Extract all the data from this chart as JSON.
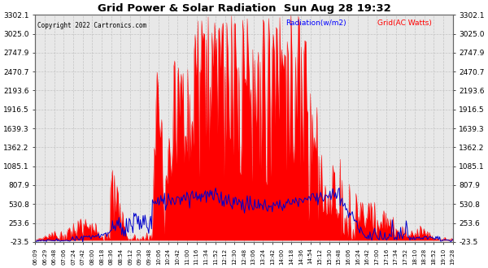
{
  "title": "Grid Power & Solar Radiation  Sun Aug 28 19:32",
  "copyright": "Copyright 2022 Cartronics.com",
  "legend_radiation": "Radiation(w/m2)",
  "legend_grid": "Grid(AC Watts)",
  "yticks": [
    -23.5,
    253.6,
    530.8,
    807.9,
    1085.1,
    1362.2,
    1639.3,
    1916.5,
    2193.6,
    2470.7,
    2747.9,
    3025.0,
    3302.1
  ],
  "ymin": -23.5,
  "ymax": 3302.1,
  "background_color": "#ffffff",
  "plot_bg_color": "#e8e8e8",
  "grid_color": "#bbbbbb",
  "radiation_color": "#ff0000",
  "grid_power_color": "#0000cc",
  "title_color": "#000000",
  "copyright_color": "#000000",
  "legend_radiation_color": "#0000ff",
  "legend_grid_color": "#ff0000",
  "xtick_labels": [
    "06:09",
    "06:29",
    "06:48",
    "07:06",
    "07:24",
    "07:42",
    "08:00",
    "08:18",
    "08:36",
    "08:54",
    "09:12",
    "09:30",
    "09:48",
    "10:06",
    "10:24",
    "10:42",
    "11:00",
    "11:16",
    "11:34",
    "11:52",
    "12:12",
    "12:30",
    "12:48",
    "13:06",
    "13:24",
    "13:42",
    "14:00",
    "14:18",
    "14:36",
    "14:54",
    "15:12",
    "15:30",
    "15:48",
    "16:06",
    "16:24",
    "16:42",
    "17:00",
    "17:16",
    "17:34",
    "17:52",
    "18:10",
    "18:28",
    "18:52",
    "19:10",
    "19:28"
  ],
  "num_points": 450,
  "figwidth": 6.0,
  "figheight": 3.3,
  "dpi": 100
}
